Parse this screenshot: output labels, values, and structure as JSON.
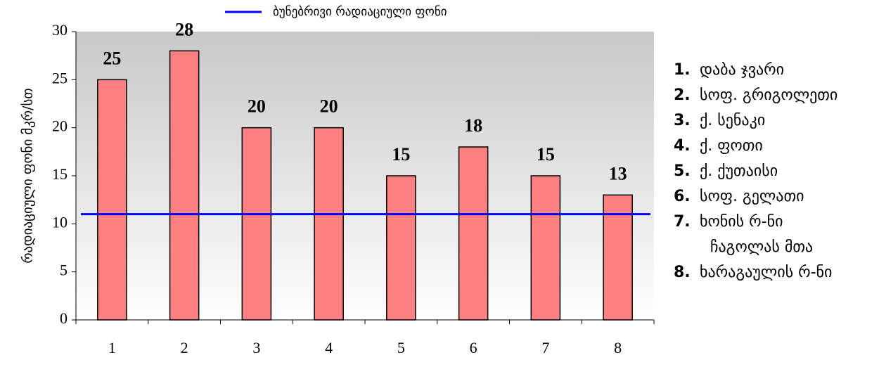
{
  "chart_data": {
    "type": "bar",
    "y_axis_label": "რადიაციული ფონი მკრ/სთ",
    "categories": [
      "1",
      "2",
      "3",
      "4",
      "5",
      "6",
      "7",
      "8"
    ],
    "values": [
      25,
      28,
      20,
      20,
      15,
      18,
      15,
      13
    ],
    "color": "#ff8080",
    "ylim": [
      0,
      30
    ],
    "yticks": [
      0,
      5,
      10,
      15,
      20,
      25,
      30
    ],
    "reference_line": {
      "name": "ბუნებრივი რადიაციული ფონი",
      "value": 11,
      "color": "#0000ff"
    },
    "legend": "top",
    "locations": [
      {
        "number": "1.",
        "lines": [
          "დაბა ჯვარი"
        ]
      },
      {
        "number": "2.",
        "lines": [
          "სოფ. გრიგოლეთი"
        ]
      },
      {
        "number": "3.",
        "lines": [
          "ქ. სენაკი"
        ]
      },
      {
        "number": "4.",
        "lines": [
          "ქ. ფოთი"
        ]
      },
      {
        "number": "5.",
        "lines": [
          "ქ. ქუთაისი"
        ]
      },
      {
        "number": "6.",
        "lines": [
          "სოფ. გელათი"
        ]
      },
      {
        "number": "7.",
        "lines": [
          "ხონის რ-ნი",
          "ჩაგოლას მთა"
        ]
      },
      {
        "number": "8.",
        "lines": [
          "ხარაგაულის რ-ნი"
        ]
      }
    ]
  }
}
